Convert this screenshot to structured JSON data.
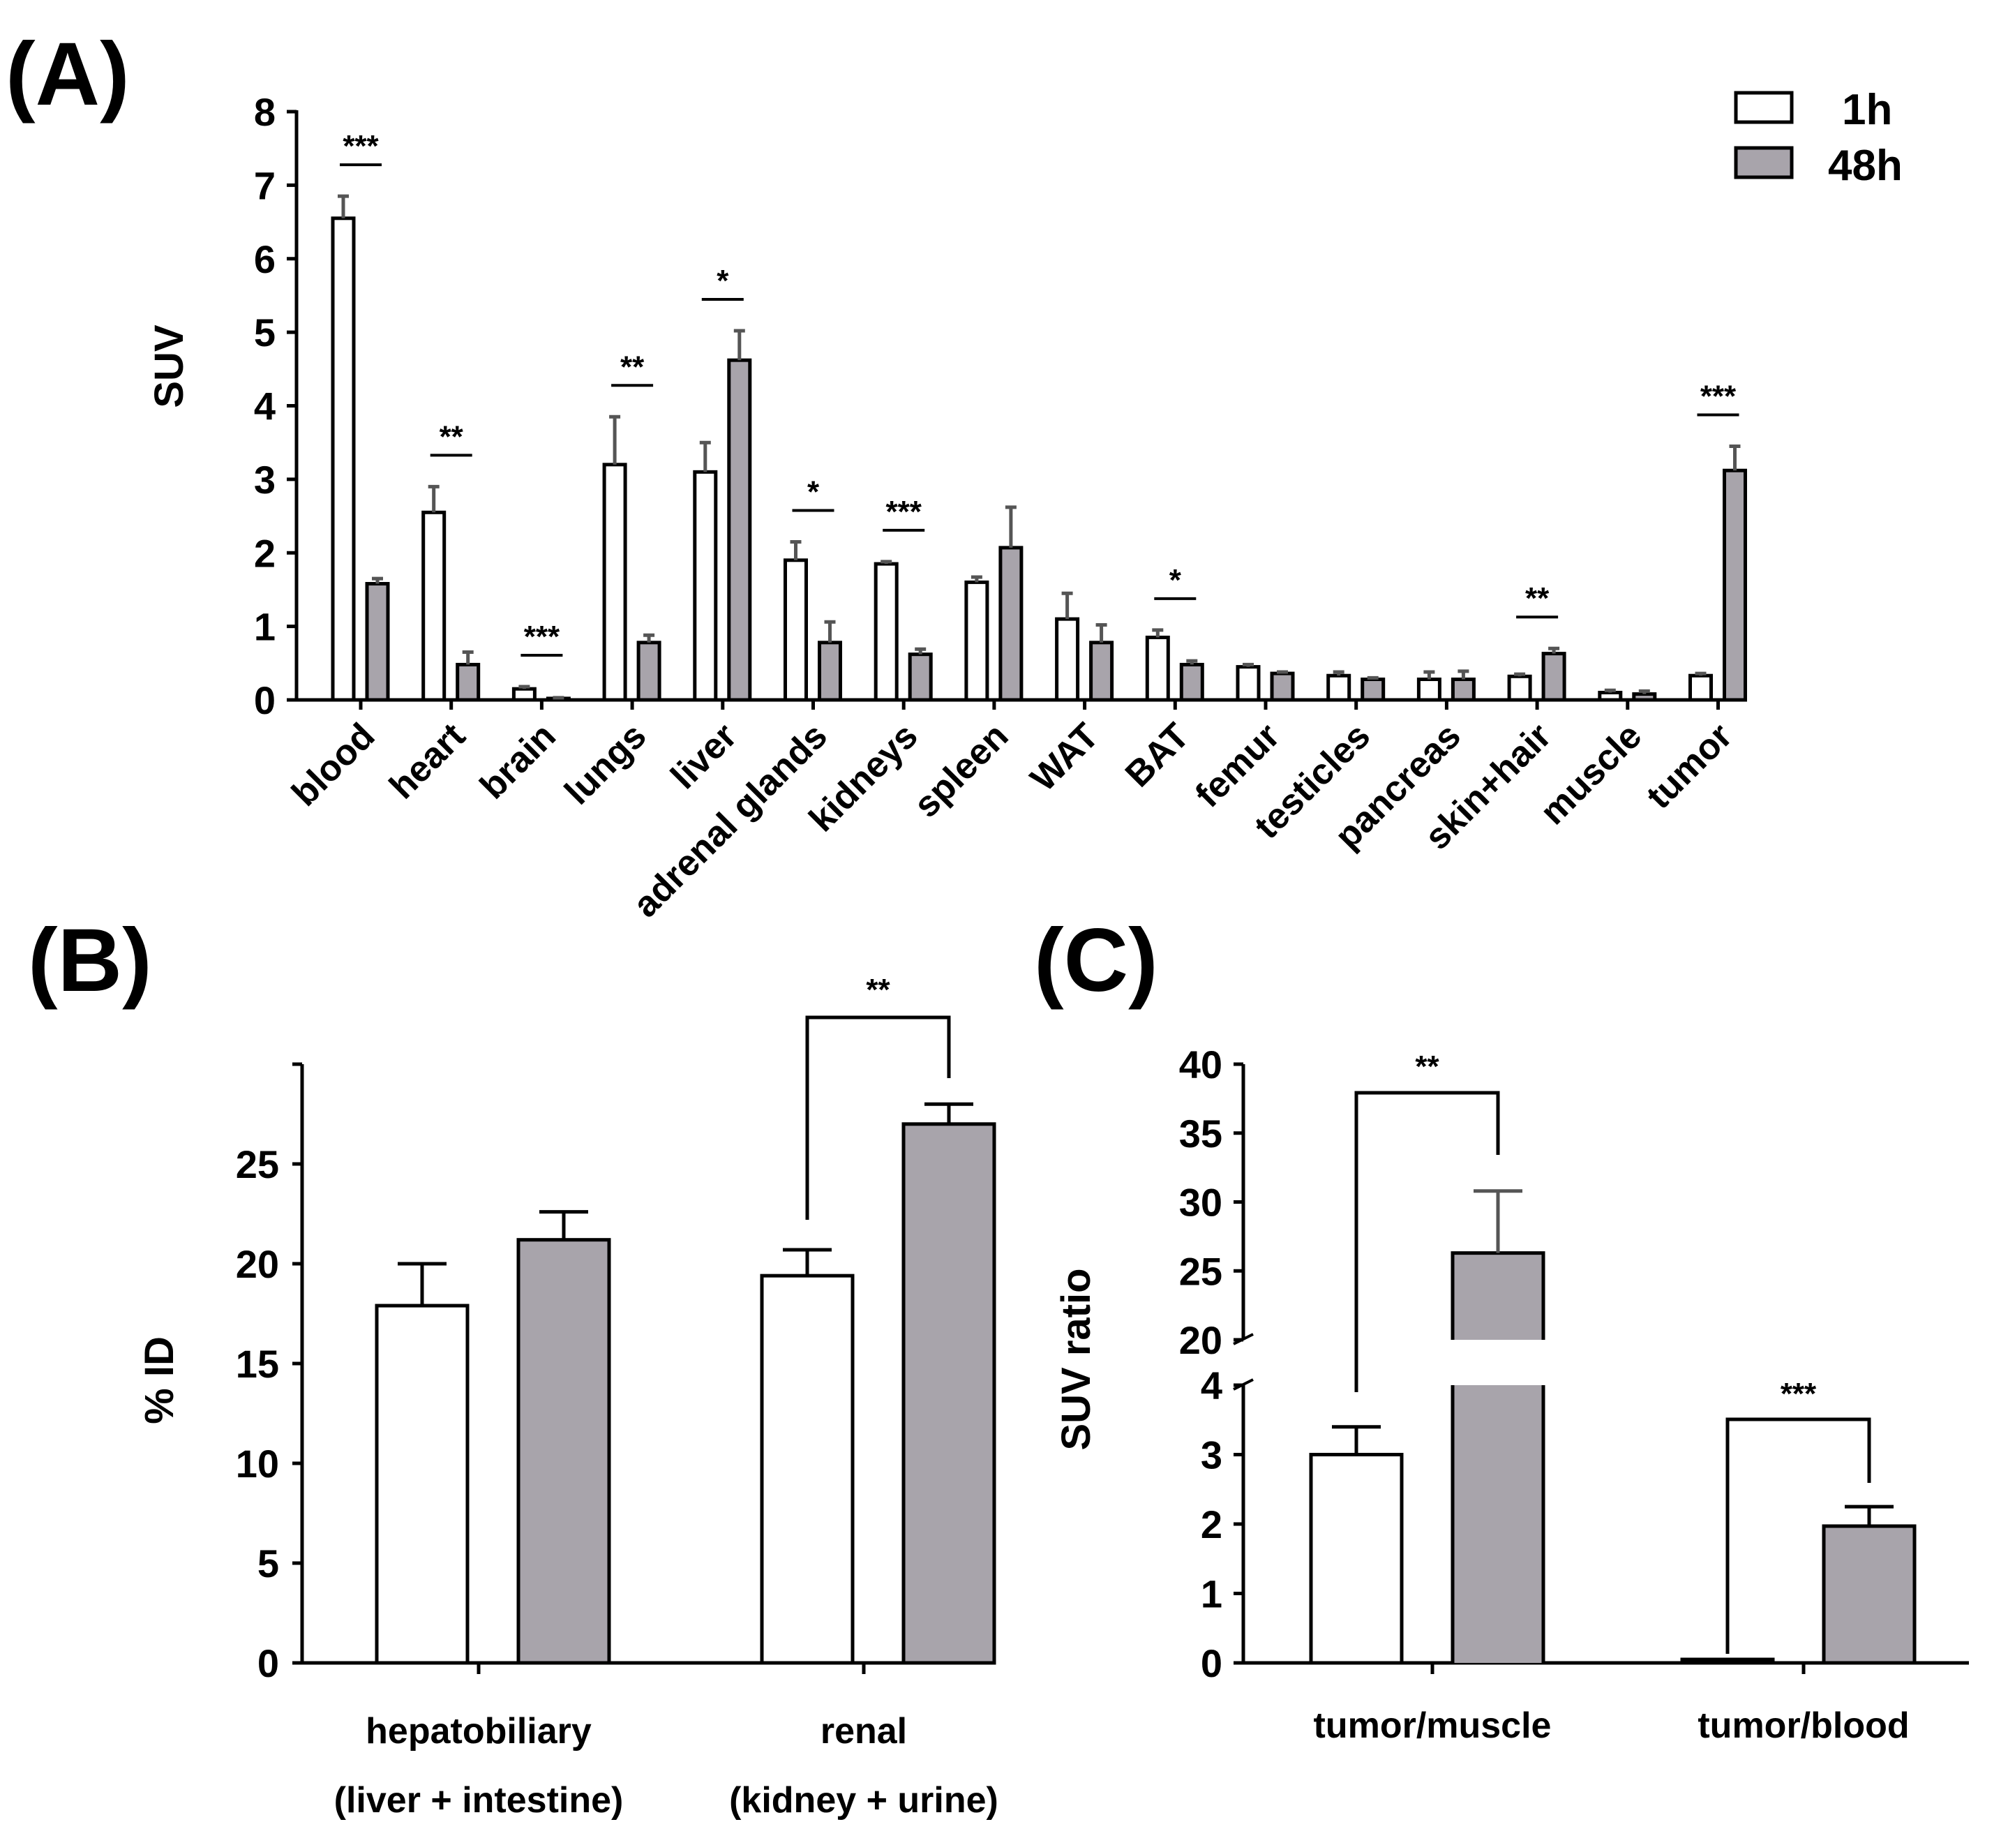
{
  "colors": {
    "h1": "#ffffff",
    "h48": "#a8a4ab",
    "axis": "#000000"
  },
  "legend": {
    "items": [
      "1h",
      "48h"
    ]
  },
  "chart_data": [
    {
      "panel": "(A)",
      "type": "bar",
      "ylabel": "SUV",
      "ylim": [
        0,
        8
      ],
      "yticks": [
        "0",
        "1",
        "2",
        "3",
        "4",
        "5",
        "6",
        "7",
        "8"
      ],
      "categories": [
        "blood",
        "heart",
        "brain",
        "lungs",
        "liver",
        "adrenal glands",
        "kidneys",
        "spleen",
        "WAT",
        "BAT",
        "femur",
        "testicles",
        "pancreas",
        "skin+hair",
        "muscle",
        "tumor"
      ],
      "series": [
        {
          "name": "1h",
          "values": [
            6.55,
            2.55,
            0.15,
            3.2,
            3.1,
            1.9,
            1.85,
            1.6,
            1.1,
            0.85,
            0.45,
            0.33,
            0.28,
            0.32,
            0.1,
            0.33
          ],
          "errors": [
            0.3,
            0.35,
            0.03,
            0.65,
            0.4,
            0.25,
            0.03,
            0.07,
            0.35,
            0.1,
            0.03,
            0.05,
            0.1,
            0.03,
            0.03,
            0.03
          ]
        },
        {
          "name": "48h",
          "values": [
            1.58,
            0.48,
            0.02,
            0.78,
            4.62,
            0.78,
            0.62,
            2.07,
            0.78,
            0.48,
            0.36,
            0.28,
            0.28,
            0.63,
            0.08,
            3.12
          ],
          "errors": [
            0.07,
            0.17,
            0.01,
            0.1,
            0.4,
            0.28,
            0.07,
            0.55,
            0.24,
            0.05,
            0.02,
            0.02,
            0.11,
            0.07,
            0.04,
            0.33
          ]
        }
      ],
      "significance": [
        {
          "index": 0,
          "label": "***"
        },
        {
          "index": 1,
          "label": "**"
        },
        {
          "index": 2,
          "label": "***"
        },
        {
          "index": 3,
          "label": "**"
        },
        {
          "index": 4,
          "label": "*"
        },
        {
          "index": 5,
          "label": "*"
        },
        {
          "index": 6,
          "label": "***"
        },
        {
          "index": 9,
          "label": "*"
        },
        {
          "index": 13,
          "label": "**"
        },
        {
          "index": 15,
          "label": "***"
        }
      ]
    },
    {
      "panel": "(B)",
      "type": "bar",
      "ylabel": "% ID",
      "ylim": [
        0,
        30
      ],
      "yticks": [
        "0",
        "5",
        "10",
        "15",
        "20",
        "25"
      ],
      "categories": [
        {
          "line1": "hepatobiliary",
          "line2": "(liver + intestine)"
        },
        {
          "line1": "renal",
          "line2": "(kidney + urine)"
        }
      ],
      "series": [
        {
          "name": "1h",
          "values": [
            17.9,
            19.4
          ],
          "errors": [
            2.1,
            1.3
          ]
        },
        {
          "name": "48h",
          "values": [
            21.2,
            27.0
          ],
          "errors": [
            1.4,
            1.0
          ]
        }
      ],
      "significance": [
        {
          "index": 1,
          "label": "**"
        }
      ]
    },
    {
      "panel": "(C)",
      "type": "bar",
      "ylabel": "SUV ratio",
      "ylim_lower": [
        0,
        4
      ],
      "ylim_upper": [
        20,
        40
      ],
      "yticks_lower": [
        "0",
        "1",
        "2",
        "3",
        "4"
      ],
      "yticks_upper": [
        "20",
        "25",
        "30",
        "35",
        "40"
      ],
      "categories": [
        "tumor/muscle",
        "tumor/blood"
      ],
      "series": [
        {
          "name": "1h",
          "values": [
            3.0,
            0.05
          ],
          "errors": [
            0.4,
            0.0
          ]
        },
        {
          "name": "48h",
          "values": [
            26.3,
            1.97
          ],
          "errors": [
            4.5,
            0.28
          ]
        }
      ],
      "significance": [
        {
          "index": 0,
          "label": "**"
        },
        {
          "index": 1,
          "label": "***"
        }
      ]
    }
  ]
}
